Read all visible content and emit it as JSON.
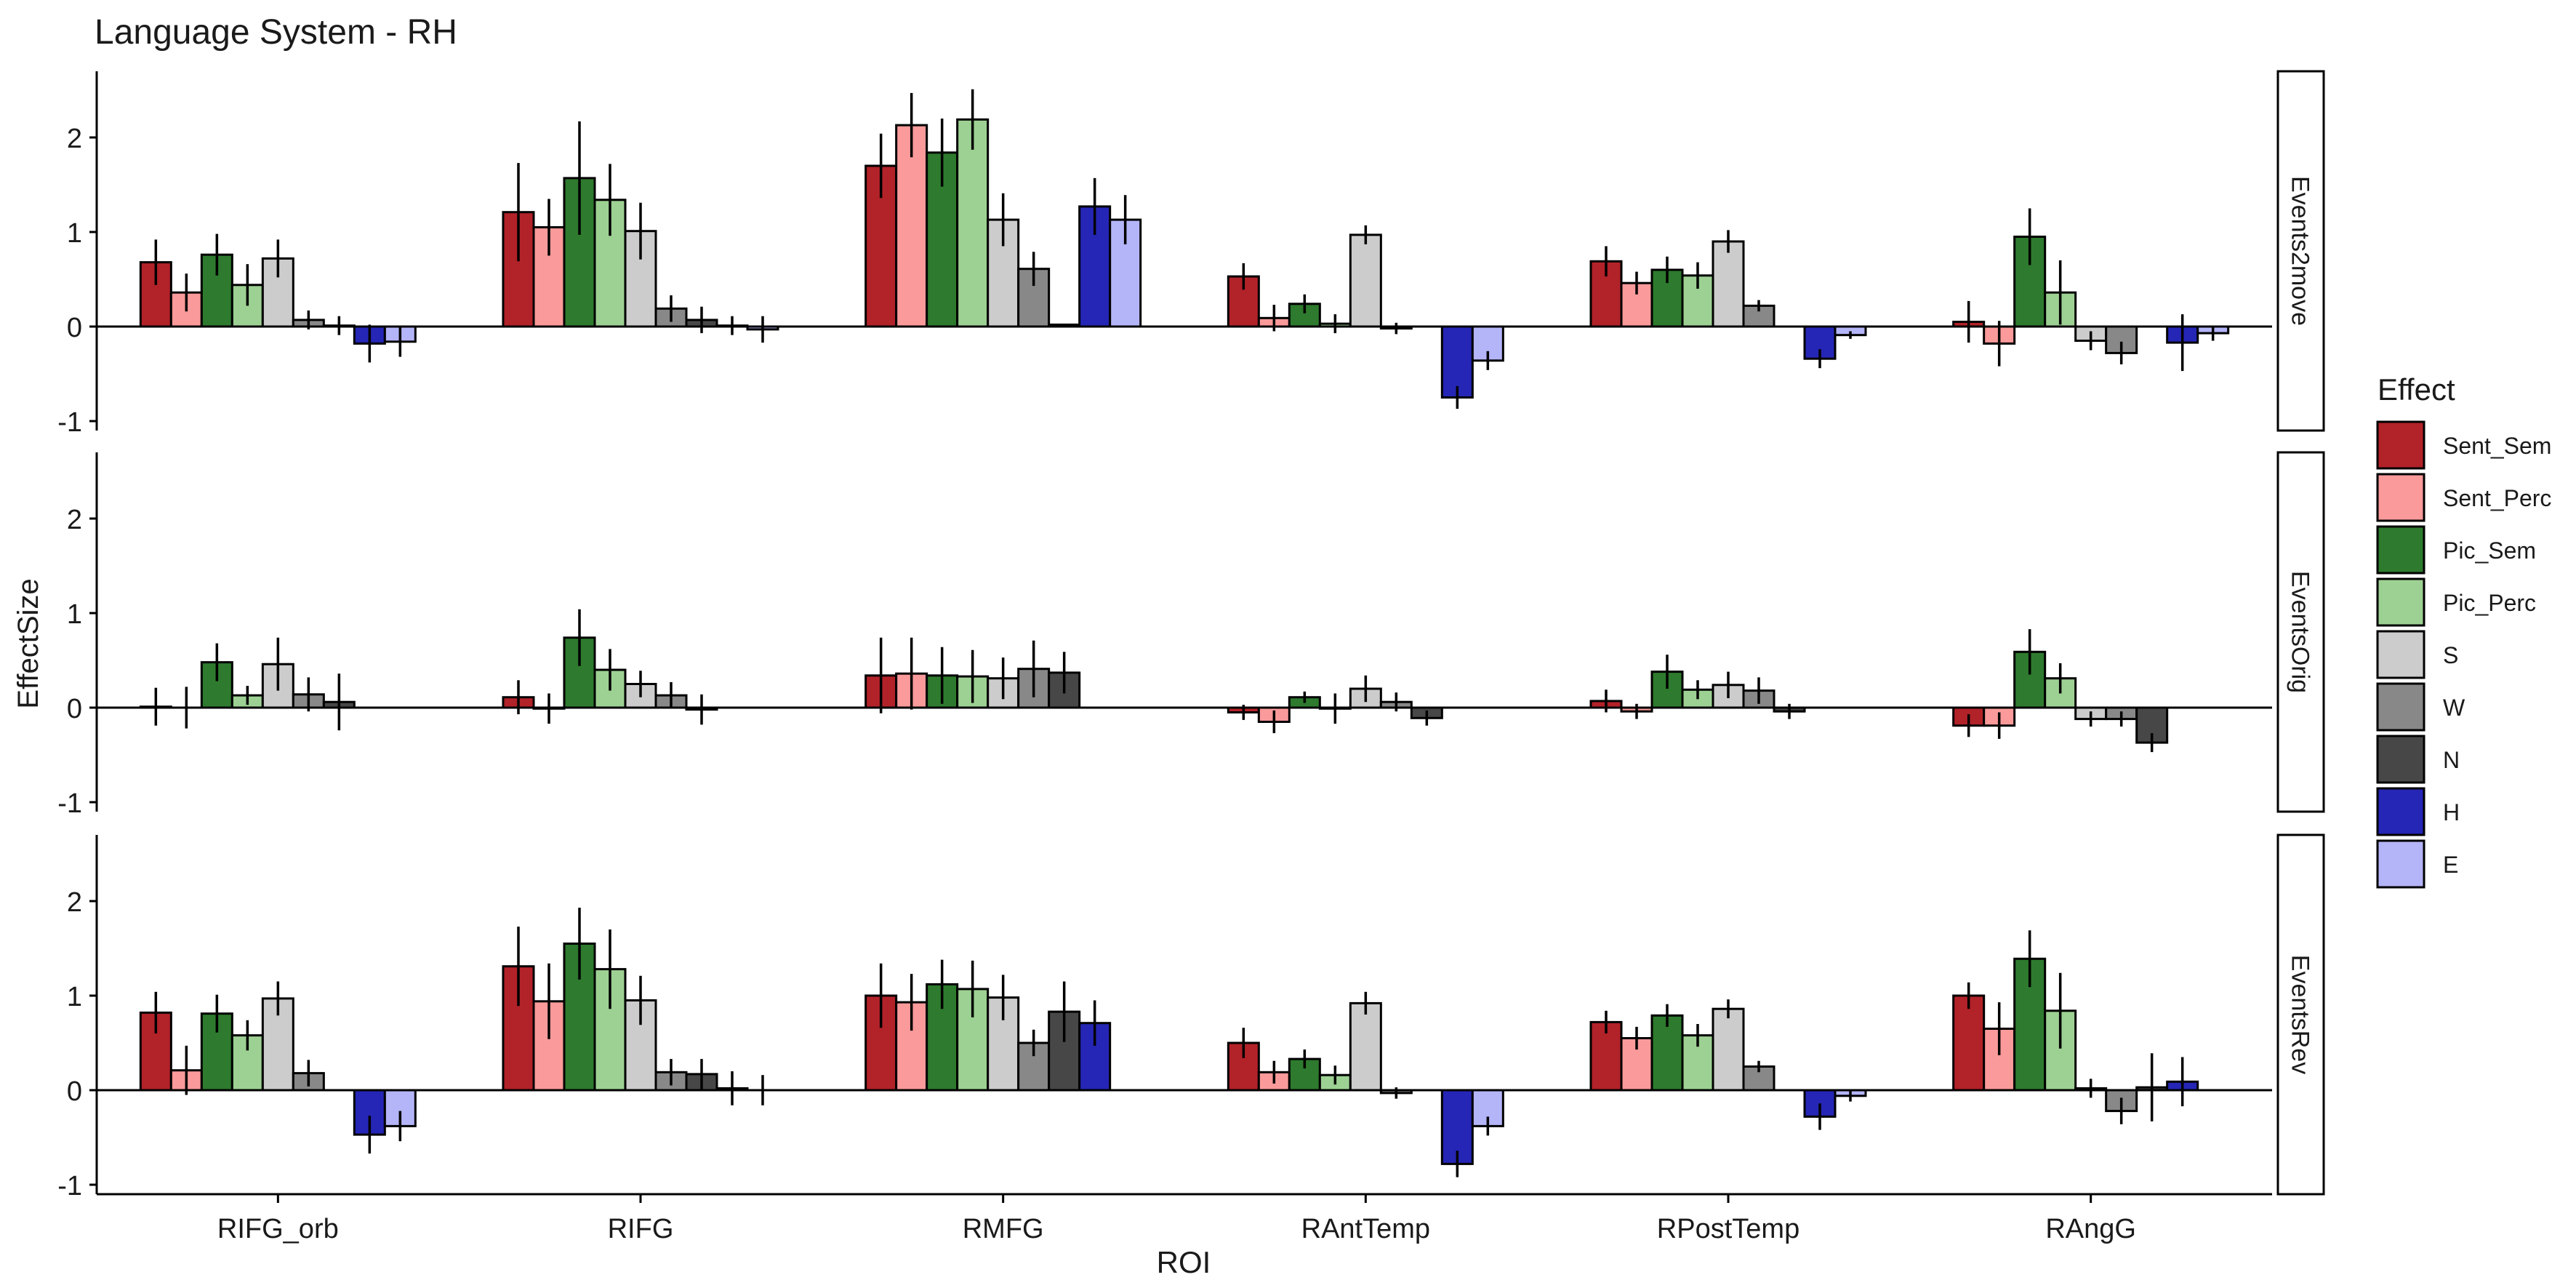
{
  "chart_data": {
    "type": "bar",
    "title": "Language System - RH",
    "xlabel": "ROI",
    "ylabel": "EffectSize",
    "ylim": [
      -1.1,
      2.7
    ],
    "yticks": [
      -1,
      0,
      1,
      2
    ],
    "categories": [
      "RIFG_orb",
      "RIFG",
      "RMFG",
      "RAntTemp",
      "RPostTemp",
      "RAngG"
    ],
    "legend": {
      "title": "Effect",
      "position": "right",
      "entries": [
        {
          "name": "Sent_Sem",
          "color": "#b22229"
        },
        {
          "name": "Sent_Perc",
          "color": "#fa9a9a"
        },
        {
          "name": "Pic_Sem",
          "color": "#2e7a2e"
        },
        {
          "name": "Pic_Perc",
          "color": "#9dd193"
        },
        {
          "name": "S",
          "color": "#cccccc"
        },
        {
          "name": "W",
          "color": "#888888"
        },
        {
          "name": "N",
          "color": "#474747"
        },
        {
          "name": "H",
          "color": "#2526b5"
        },
        {
          "name": "E",
          "color": "#b4b4f8"
        }
      ]
    },
    "panels": [
      {
        "name": "Events2move",
        "effects": [
          "Sent_Sem",
          "Sent_Perc",
          "Pic_Sem",
          "Pic_Perc",
          "S",
          "W",
          "N",
          "H",
          "E"
        ],
        "values": [
          [
            0.68,
            0.36,
            0.76,
            0.44,
            0.72,
            0.07,
            0.01,
            -0.18,
            -0.16
          ],
          [
            1.21,
            1.05,
            1.57,
            1.34,
            1.01,
            0.19,
            0.07,
            0.01,
            -0.03
          ],
          [
            1.7,
            2.13,
            1.84,
            2.19,
            1.13,
            0.61,
            0.02,
            1.27,
            1.13
          ],
          [
            0.53,
            0.09,
            0.24,
            0.03,
            0.97,
            -0.02,
            0.0,
            -0.75,
            -0.36
          ],
          [
            0.69,
            0.46,
            0.6,
            0.54,
            0.9,
            0.22,
            0.0,
            -0.34,
            -0.09
          ],
          [
            0.05,
            -0.18,
            0.95,
            0.36,
            -0.15,
            -0.28,
            0.0,
            -0.17,
            -0.07
          ]
        ],
        "errors": [
          [
            0.24,
            0.2,
            0.22,
            0.22,
            0.2,
            0.1,
            0.1,
            0.2,
            0.16
          ],
          [
            0.52,
            0.3,
            0.6,
            0.38,
            0.3,
            0.14,
            0.14,
            0.1,
            0.14
          ],
          [
            0.34,
            0.34,
            0.36,
            0.32,
            0.28,
            0.18,
            0.01,
            0.3,
            0.26
          ],
          [
            0.14,
            0.14,
            0.1,
            0.1,
            0.1,
            0.06,
            0.01,
            0.12,
            0.1
          ],
          [
            0.16,
            0.12,
            0.14,
            0.14,
            0.12,
            0.06,
            0.01,
            0.1,
            0.04
          ],
          [
            0.22,
            0.24,
            0.3,
            0.34,
            0.1,
            0.12,
            0.01,
            0.3,
            0.08
          ]
        ]
      },
      {
        "name": "EventsOrig",
        "effects": [
          "Sent_Sem",
          "Sent_Perc",
          "Pic_Sem",
          "Pic_Perc",
          "S",
          "W",
          "N",
          "H",
          "E"
        ],
        "values": [
          [
            0.01,
            0.0,
            0.48,
            0.13,
            0.46,
            0.14,
            0.06,
            0.0,
            0.0
          ],
          [
            0.11,
            -0.01,
            0.74,
            0.4,
            0.25,
            0.13,
            -0.02,
            0.0,
            0.0
          ],
          [
            0.34,
            0.36,
            0.34,
            0.33,
            0.31,
            0.41,
            0.37,
            0.0,
            0.0
          ],
          [
            -0.05,
            -0.15,
            0.11,
            -0.01,
            0.2,
            0.06,
            -0.11,
            0.0,
            0.0
          ],
          [
            0.07,
            -0.04,
            0.38,
            0.19,
            0.24,
            0.18,
            -0.04,
            0.0,
            0.0
          ],
          [
            -0.19,
            -0.19,
            0.59,
            0.31,
            -0.12,
            -0.12,
            -0.37,
            0.0,
            0.0
          ]
        ],
        "errors": [
          [
            0.2,
            0.22,
            0.2,
            0.1,
            0.28,
            0.18,
            0.3,
            0.0,
            0.0
          ],
          [
            0.18,
            0.16,
            0.3,
            0.22,
            0.14,
            0.14,
            0.16,
            0.0,
            0.0
          ],
          [
            0.4,
            0.38,
            0.3,
            0.28,
            0.22,
            0.3,
            0.22,
            0.0,
            0.0
          ],
          [
            0.08,
            0.12,
            0.06,
            0.16,
            0.14,
            0.1,
            0.08,
            0.0,
            0.0
          ],
          [
            0.12,
            0.08,
            0.18,
            0.1,
            0.14,
            0.14,
            0.08,
            0.0,
            0.0
          ],
          [
            0.12,
            0.14,
            0.24,
            0.16,
            0.08,
            0.08,
            0.1,
            0.0,
            0.0
          ]
        ]
      },
      {
        "name": "EventsRev",
        "effects": [
          "Sent_Sem",
          "Sent_Perc",
          "Pic_Sem",
          "Pic_Perc",
          "S",
          "W",
          "N",
          "H",
          "E"
        ],
        "values": [
          [
            0.82,
            0.21,
            0.81,
            0.58,
            0.97,
            0.18,
            0.0,
            -0.47,
            -0.38
          ],
          [
            1.31,
            0.94,
            1.55,
            1.28,
            0.95,
            0.19,
            0.17,
            0.02,
            0.0
          ],
          [
            1.0,
            0.93,
            1.12,
            1.07,
            0.98,
            0.5,
            0.83,
            0.71,
            0.0
          ],
          [
            0.5,
            0.19,
            0.33,
            0.16,
            0.92,
            -0.03,
            0.0,
            -0.78,
            -0.38
          ],
          [
            0.72,
            0.55,
            0.79,
            0.58,
            0.86,
            0.25,
            0.0,
            -0.28,
            -0.06
          ],
          [
            1.0,
            0.65,
            1.39,
            0.84,
            0.02,
            -0.22,
            0.03,
            0.09,
            0.0
          ]
        ],
        "errors": [
          [
            0.22,
            0.26,
            0.2,
            0.16,
            0.18,
            0.14,
            0.01,
            0.2,
            0.16
          ],
          [
            0.42,
            0.4,
            0.38,
            0.42,
            0.26,
            0.14,
            0.16,
            0.18,
            0.16
          ],
          [
            0.34,
            0.3,
            0.26,
            0.3,
            0.24,
            0.14,
            0.32,
            0.24,
            0.01
          ],
          [
            0.16,
            0.12,
            0.1,
            0.1,
            0.12,
            0.06,
            0.01,
            0.14,
            0.1
          ],
          [
            0.12,
            0.12,
            0.12,
            0.12,
            0.1,
            0.06,
            0.01,
            0.14,
            0.06
          ],
          [
            0.14,
            0.28,
            0.3,
            0.4,
            0.1,
            0.14,
            0.36,
            0.26,
            0.01
          ]
        ]
      }
    ]
  }
}
